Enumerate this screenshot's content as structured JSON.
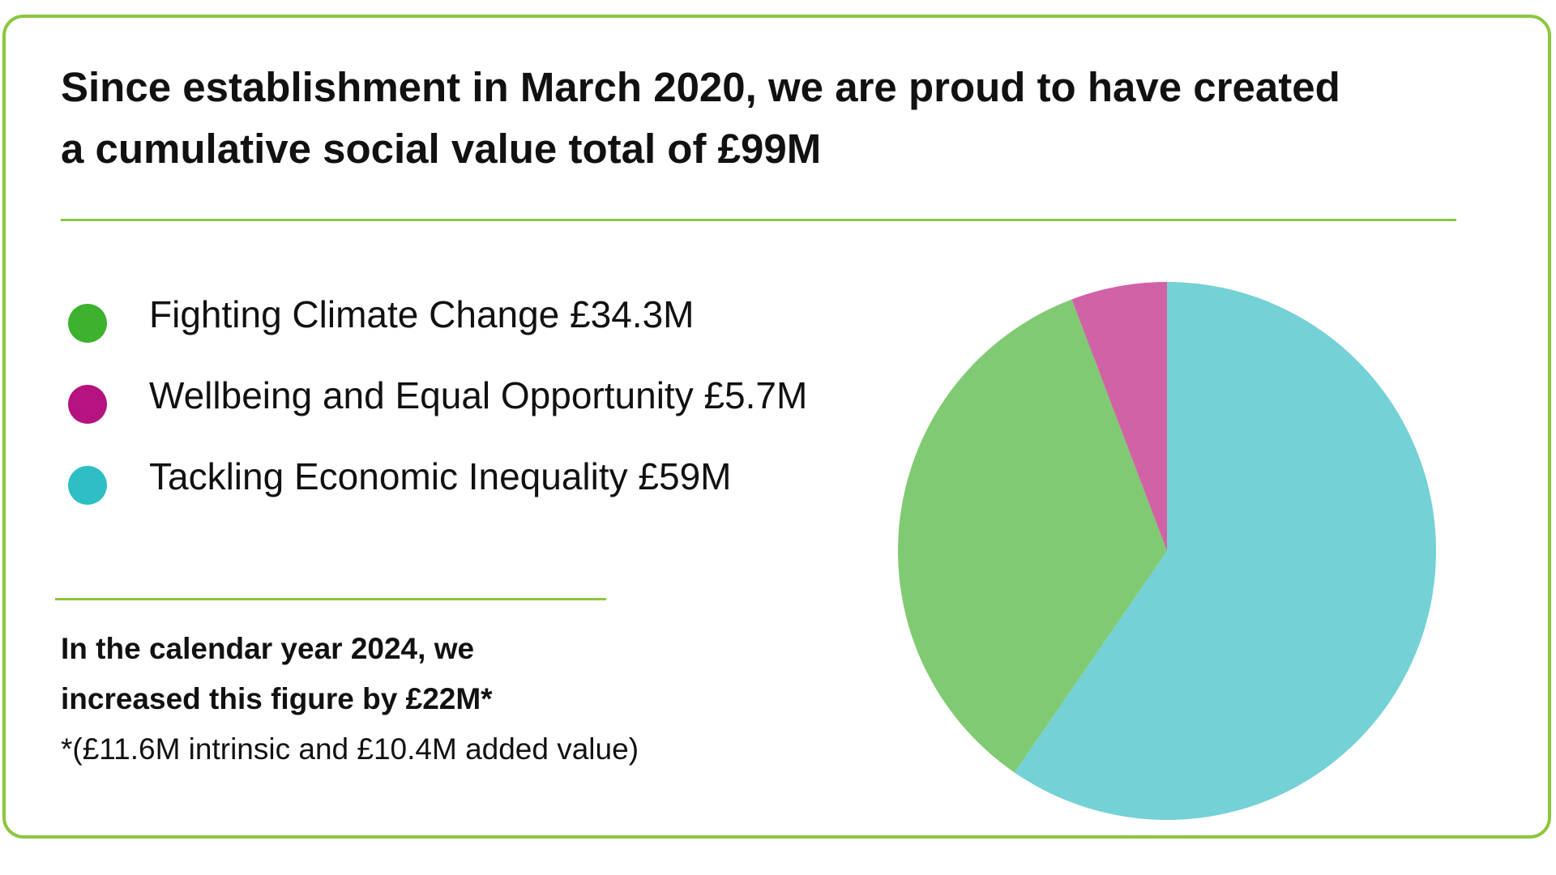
{
  "headline": {
    "line1": "Since establishment in March 2020, we are proud to have created",
    "line2": "a cumulative social value total of £99M"
  },
  "legend": [
    {
      "label": "Fighting Climate Change £34.3M",
      "color": "#3cb22f"
    },
    {
      "label": "Wellbeing and Equal Opportunity £5.7M",
      "color": "#b5137f"
    },
    {
      "label": "Tackling Economic Inequality £59M",
      "color": "#2ebfc5"
    }
  ],
  "note": {
    "line1": "In the calendar year 2024, we",
    "line2": "increased this figure by £22M*",
    "line3": "*(£11.6M intrinsic and £10.4M added value)"
  },
  "colors": {
    "accent": "#8cc63f"
  },
  "chart_data": {
    "type": "pie",
    "title": "",
    "slices": [
      {
        "category": "Tackling Economic Inequality",
        "value": 59,
        "color": "#74d1d5"
      },
      {
        "category": "Fighting Climate Change",
        "value": 34.3,
        "color": "#80ca73"
      },
      {
        "category": "Wellbeing and Equal Opportunity",
        "value": 5.7,
        "color": "#d062a5"
      }
    ],
    "unit": "£M",
    "start": "12 o'clock",
    "direction": "clockwise",
    "legend_position": "left"
  }
}
